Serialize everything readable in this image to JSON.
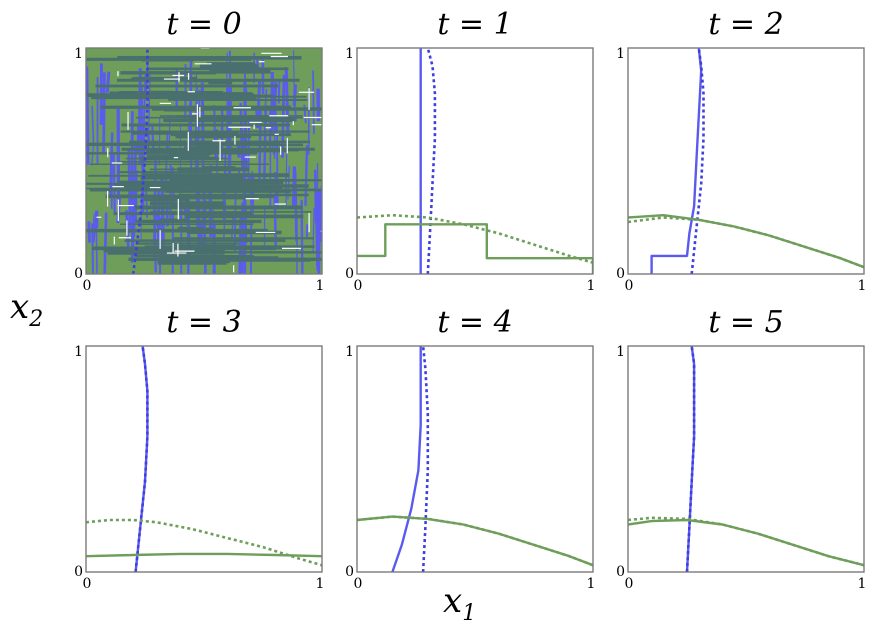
{
  "chart_data": {
    "type": "line",
    "xlabel": "x",
    "xlabel_sub": "1",
    "ylabel": "x",
    "ylabel_sub": "2",
    "colors": {
      "blue": "#5a5af0",
      "green": "#6e9e5a",
      "noise_dark": "#4a6f6f"
    },
    "panels": [
      {
        "title": "t = 0",
        "x_ticks": [
          "0",
          "1"
        ],
        "y_ticks": [
          "0",
          "1"
        ],
        "xlim": [
          0,
          1
        ],
        "ylim": [
          0,
          1
        ],
        "noise": true,
        "series": [
          {
            "color": "blue",
            "style": "dotted",
            "x": [
              0.2,
              0.23,
              0.25,
              0.26,
              0.26
            ],
            "y": [
              0,
              0.25,
              0.5,
              0.75,
              1
            ]
          }
        ]
      },
      {
        "title": "t = 1",
        "x_ticks": [
          "0",
          "1"
        ],
        "y_ticks": [
          "0",
          "1"
        ],
        "xlim": [
          0,
          1
        ],
        "ylim": [
          0,
          1
        ],
        "series": [
          {
            "color": "blue",
            "style": "solid",
            "x": [
              0.27,
              0.27
            ],
            "y": [
              0,
              1
            ]
          },
          {
            "color": "blue",
            "style": "dotted",
            "x": [
              0.3,
              0.31,
              0.32,
              0.33,
              0.33,
              0.32,
              0.3
            ],
            "y": [
              0,
              0.2,
              0.4,
              0.6,
              0.8,
              0.92,
              1
            ]
          },
          {
            "color": "green",
            "style": "solid",
            "x": [
              0,
              0.12,
              0.12,
              0.55,
              0.55,
              1.0,
              1.0
            ],
            "y": [
              0.08,
              0.08,
              0.22,
              0.22,
              0.07,
              0.07,
              0.0
            ]
          },
          {
            "color": "green",
            "style": "dotted",
            "x": [
              0,
              0.15,
              0.3,
              0.45,
              0.6,
              0.75,
              0.9,
              1.0
            ],
            "y": [
              0.25,
              0.26,
              0.25,
              0.22,
              0.18,
              0.13,
              0.08,
              0.05
            ]
          }
        ]
      },
      {
        "title": "t = 2",
        "x_ticks": [
          "0",
          "1"
        ],
        "y_ticks": [
          "0",
          "1"
        ],
        "xlim": [
          0,
          1
        ],
        "ylim": [
          0,
          1
        ],
        "series": [
          {
            "color": "blue",
            "style": "solid",
            "x": [
              0.1,
              0.1,
              0.25,
              0.26,
              0.28,
              0.29,
              0.3,
              0.31,
              0.3
            ],
            "y": [
              0,
              0.08,
              0.08,
              0.18,
              0.3,
              0.5,
              0.7,
              0.9,
              1.0
            ]
          },
          {
            "color": "blue",
            "style": "dotted",
            "x": [
              0.27,
              0.29,
              0.31,
              0.32,
              0.32,
              0.31,
              0.3
            ],
            "y": [
              0,
              0.2,
              0.4,
              0.6,
              0.8,
              0.92,
              1.0
            ]
          },
          {
            "color": "green",
            "style": "solid",
            "x": [
              0,
              0.15,
              0.3,
              0.45,
              0.6,
              0.75,
              0.9,
              1.0
            ],
            "y": [
              0.25,
              0.26,
              0.24,
              0.21,
              0.17,
              0.12,
              0.07,
              0.03
            ]
          },
          {
            "color": "green",
            "style": "dotted",
            "x": [
              0,
              0.15,
              0.3,
              0.45,
              0.6,
              0.75,
              0.9,
              1.0
            ],
            "y": [
              0.23,
              0.25,
              0.24,
              0.21,
              0.17,
              0.12,
              0.07,
              0.03
            ]
          }
        ]
      },
      {
        "title": "t = 3",
        "x_ticks": [
          "0",
          "1"
        ],
        "y_ticks": [
          "0",
          "1"
        ],
        "xlim": [
          0,
          1
        ],
        "ylim": [
          0,
          1
        ],
        "series": [
          {
            "color": "blue",
            "style": "solid",
            "x": [
              0.21,
              0.23,
              0.25,
              0.26,
              0.26,
              0.25,
              0.24
            ],
            "y": [
              0,
              0.2,
              0.4,
              0.6,
              0.8,
              0.92,
              1.0
            ]
          },
          {
            "color": "blue",
            "style": "dotted",
            "x": [
              0.21,
              0.23,
              0.25,
              0.26,
              0.26,
              0.25,
              0.24
            ],
            "y": [
              0,
              0.2,
              0.4,
              0.6,
              0.8,
              0.92,
              1.0
            ]
          },
          {
            "color": "green",
            "style": "solid",
            "x": [
              0,
              0.2,
              0.4,
              0.6,
              0.8,
              1.0
            ],
            "y": [
              0.07,
              0.075,
              0.08,
              0.08,
              0.075,
              0.07
            ]
          },
          {
            "color": "green",
            "style": "dotted",
            "x": [
              0,
              0.1,
              0.2,
              0.3,
              0.45,
              0.6,
              0.75,
              0.9,
              1.0
            ],
            "y": [
              0.22,
              0.23,
              0.23,
              0.22,
              0.19,
              0.15,
              0.11,
              0.06,
              0.03
            ]
          }
        ]
      },
      {
        "title": "t = 4",
        "x_ticks": [
          "0",
          "1"
        ],
        "y_ticks": [
          "0",
          "1"
        ],
        "xlim": [
          0,
          1
        ],
        "ylim": [
          0,
          1
        ],
        "series": [
          {
            "color": "blue",
            "style": "solid",
            "x": [
              0.15,
              0.19,
              0.23,
              0.26,
              0.27,
              0.27,
              0.27
            ],
            "y": [
              0,
              0.12,
              0.28,
              0.45,
              0.65,
              0.85,
              1.0
            ]
          },
          {
            "color": "blue",
            "style": "dotted",
            "x": [
              0.28,
              0.29,
              0.3,
              0.3,
              0.29,
              0.28
            ],
            "y": [
              0,
              0.2,
              0.45,
              0.7,
              0.9,
              1.0
            ]
          },
          {
            "color": "green",
            "style": "solid",
            "x": [
              0,
              0.15,
              0.3,
              0.45,
              0.6,
              0.75,
              0.9,
              1.0
            ],
            "y": [
              0.23,
              0.245,
              0.235,
              0.21,
              0.17,
              0.12,
              0.07,
              0.03
            ]
          },
          {
            "color": "green",
            "style": "dotted",
            "x": [
              0,
              0.15,
              0.3,
              0.45,
              0.6,
              0.75,
              0.9,
              1.0
            ],
            "y": [
              0.23,
              0.245,
              0.235,
              0.21,
              0.17,
              0.12,
              0.07,
              0.03
            ]
          }
        ]
      },
      {
        "title": "t = 5",
        "x_ticks": [
          "0",
          "1"
        ],
        "y_ticks": [
          "0",
          "1"
        ],
        "xlim": [
          0,
          1
        ],
        "ylim": [
          0,
          1
        ],
        "series": [
          {
            "color": "blue",
            "style": "solid",
            "x": [
              0.25,
              0.26,
              0.27,
              0.28,
              0.28,
              0.28,
              0.27
            ],
            "y": [
              0,
              0.2,
              0.4,
              0.6,
              0.8,
              0.92,
              1.0
            ]
          },
          {
            "color": "blue",
            "style": "dotted",
            "x": [
              0.25,
              0.26,
              0.27,
              0.28,
              0.28,
              0.28,
              0.27
            ],
            "y": [
              0,
              0.2,
              0.4,
              0.6,
              0.8,
              0.92,
              1.0
            ]
          },
          {
            "color": "green",
            "style": "solid",
            "x": [
              0,
              0.1,
              0.25,
              0.4,
              0.55,
              0.7,
              0.85,
              1.0
            ],
            "y": [
              0.21,
              0.225,
              0.23,
              0.21,
              0.17,
              0.12,
              0.07,
              0.03
            ]
          },
          {
            "color": "green",
            "style": "dotted",
            "x": [
              0,
              0.1,
              0.25,
              0.4,
              0.55,
              0.7,
              0.85,
              1.0
            ],
            "y": [
              0.23,
              0.24,
              0.235,
              0.21,
              0.17,
              0.12,
              0.07,
              0.03
            ]
          }
        ]
      }
    ]
  }
}
